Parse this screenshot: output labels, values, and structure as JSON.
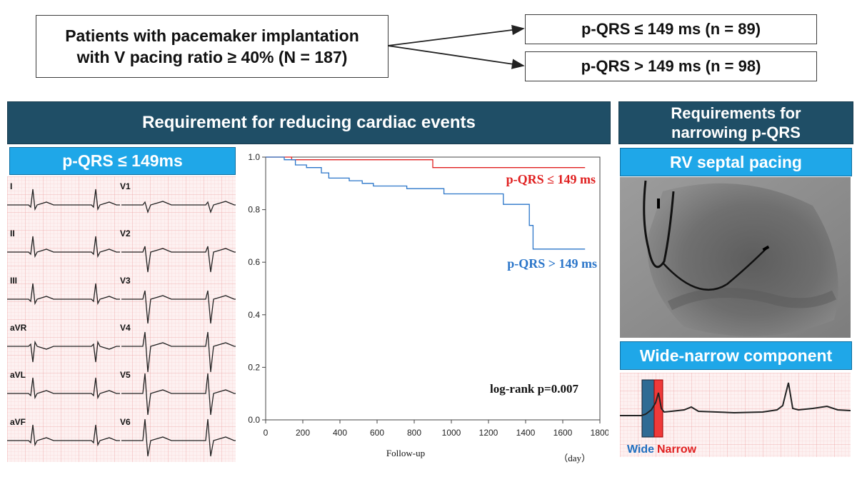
{
  "top": {
    "patients_box": {
      "line1": "Patients with pacemaker implantation",
      "line2": "with V pacing ratio ≥ 40% (N = 187)"
    },
    "group_low": "p-QRS ≤ 149 ms (n = 89)",
    "group_high": "p-QRS > 149 ms (n = 98)"
  },
  "left_section": {
    "header": "Requirement for reducing cardiac events",
    "ecg_label": "p-QRS ≤ 149ms",
    "leads_left": [
      "I",
      "II",
      "III",
      "aVR",
      "aVL",
      "aVF"
    ],
    "leads_right": [
      "V1",
      "V2",
      "V3",
      "V4",
      "V5",
      "V6"
    ]
  },
  "right_section": {
    "header_line1": "Requirements for",
    "header_line2": "narrowing p-QRS",
    "pacing_label": "RV septal pacing",
    "component_label": "Wide-narrow component",
    "wide_label": "Wide",
    "narrow_label": "Narrow"
  },
  "colors": {
    "dark_header": "#1f4e66",
    "cyan": "#1fa7e8",
    "low_series": "#e02020",
    "high_series": "#2a75c9"
  },
  "chart_data": {
    "type": "line",
    "subtype": "kaplan-meier",
    "xlabel": "Follow-up",
    "xunit": "（day）",
    "ylabel": "",
    "xlim": [
      0,
      1800
    ],
    "ylim": [
      0.0,
      1.0
    ],
    "xticks": [
      0,
      200,
      400,
      600,
      800,
      1000,
      1200,
      1400,
      1600,
      1800
    ],
    "yticks": [
      0.0,
      0.2,
      0.4,
      0.6,
      0.8,
      1.0
    ],
    "annotation": "log-rank p=0.007",
    "grid": false,
    "series": [
      {
        "name": "p-QRS ≤ 149 ms",
        "color": "#e02020",
        "x": [
          0,
          140,
          140,
          900,
          900,
          1720
        ],
        "y": [
          1.0,
          1.0,
          0.99,
          0.99,
          0.96,
          0.96
        ]
      },
      {
        "name": "p-QRS > 149 ms",
        "color": "#2a75c9",
        "x": [
          0,
          100,
          100,
          160,
          160,
          220,
          220,
          300,
          300,
          340,
          340,
          450,
          450,
          520,
          520,
          580,
          580,
          760,
          760,
          960,
          960,
          1280,
          1280,
          1420,
          1420,
          1440,
          1440,
          1720
        ],
        "y": [
          1.0,
          1.0,
          0.99,
          0.99,
          0.97,
          0.97,
          0.96,
          0.96,
          0.94,
          0.94,
          0.92,
          0.92,
          0.91,
          0.91,
          0.9,
          0.9,
          0.89,
          0.89,
          0.88,
          0.88,
          0.86,
          0.86,
          0.82,
          0.82,
          0.74,
          0.74,
          0.65,
          0.65
        ]
      }
    ]
  }
}
